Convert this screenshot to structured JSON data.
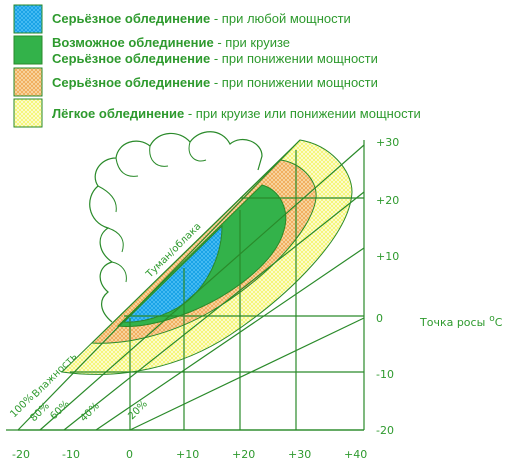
{
  "colors": {
    "blue": "#1aa3e6",
    "green": "#33b24a",
    "orange": "#f0b060",
    "yellow": "#f5f570",
    "line": "#2a8a2a",
    "text": "#2e9a2e"
  },
  "legend": [
    {
      "bold": "Серьёзное облединение",
      "rest": " - при любой мощности"
    },
    {
      "bold": "Возможное облединение",
      "rest": " - при круизе"
    },
    {
      "bold": "Серьёзное облединение",
      "rest": " - при понижении мощности"
    },
    {
      "bold": "Серьёзное облединение",
      "rest": " - при понижении мощности"
    },
    {
      "bold": "Лёгкое облединение",
      "rest": " - при круизе или понижении мощности"
    }
  ],
  "y_axis": {
    "title": "Точка росы",
    "unit_sup": "o",
    "unit": "C",
    "ticks": [
      "+30",
      "+20",
      "+10",
      "0",
      "-10",
      "-20"
    ]
  },
  "x_axis": {
    "ticks": [
      "-20",
      "-10",
      "0",
      "+10",
      "+20",
      "+30",
      "+40"
    ]
  },
  "humidity_title": "Влажность",
  "humidity_labels": [
    "100%",
    "80%",
    "60%",
    "40%",
    "20%"
  ],
  "cloud_label": "Туман/облака"
}
